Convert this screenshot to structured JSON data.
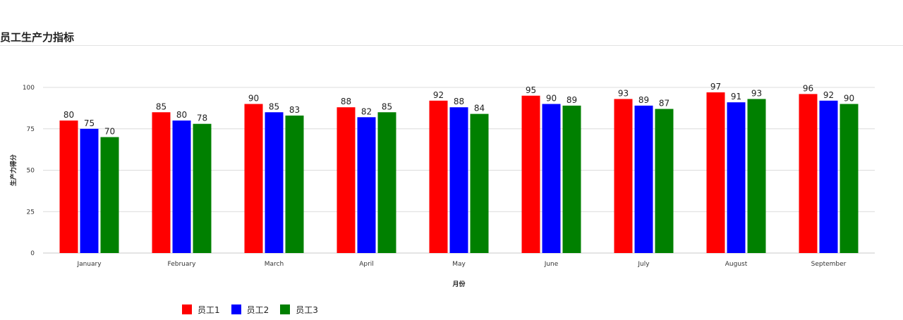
{
  "page": {
    "title": "员工生产力指标"
  },
  "chart_data": {
    "type": "bar",
    "categories": [
      "January",
      "February",
      "March",
      "April",
      "May",
      "June",
      "July",
      "August",
      "September"
    ],
    "series": [
      {
        "name": "员工1",
        "color": "#ff0000",
        "values": [
          80,
          85,
          90,
          88,
          92,
          95,
          93,
          97,
          96
        ]
      },
      {
        "name": "员工2",
        "color": "#0000ff",
        "values": [
          75,
          80,
          85,
          82,
          88,
          90,
          89,
          91,
          92
        ]
      },
      {
        "name": "员工3",
        "color": "#008000",
        "values": [
          70,
          78,
          83,
          85,
          84,
          89,
          87,
          93,
          90
        ]
      }
    ],
    "xlabel": "月份",
    "ylabel": "生产力得分",
    "ylim": [
      0,
      100
    ],
    "yticks": [
      0,
      25,
      50,
      75,
      100
    ],
    "grid": true,
    "data_labels": true,
    "legend": "bottom-left"
  }
}
